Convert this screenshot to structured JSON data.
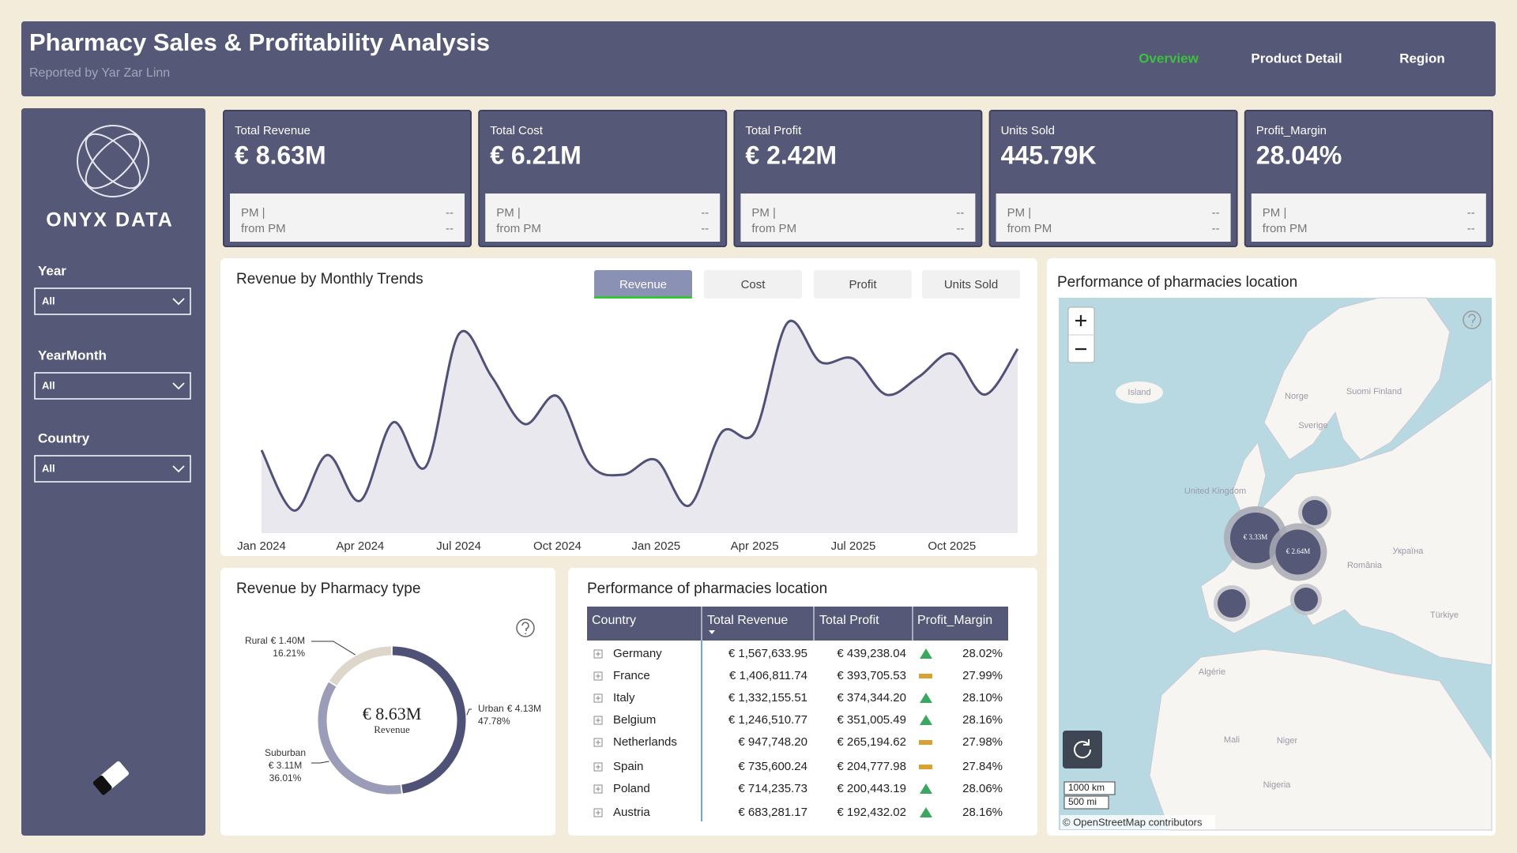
{
  "header": {
    "title": "Pharmacy Sales & Profitability Analysis",
    "subtitle": "Reported by Yar Zar Linn",
    "nav": [
      "Overview",
      "Product Detail",
      "Region"
    ]
  },
  "sidebar": {
    "logo": "ONYX DATA",
    "filters": [
      {
        "label": "Year",
        "value": "All"
      },
      {
        "label": "YearMonth",
        "value": "All"
      },
      {
        "label": "Country",
        "value": "All"
      }
    ]
  },
  "kpis": [
    {
      "label": "Total Revenue",
      "value": "€ 8.63M",
      "pm": "PM |",
      "from": "from PM",
      "d1": "--",
      "d2": "--"
    },
    {
      "label": "Total Cost",
      "value": "€ 6.21M",
      "pm": "PM |",
      "from": "from PM",
      "d1": "--",
      "d2": "--"
    },
    {
      "label": "Total Profit",
      "value": "€ 2.42M",
      "pm": "PM |",
      "from": "from PM",
      "d1": "--",
      "d2": "--"
    },
    {
      "label": "Units Sold",
      "value": "445.79K",
      "pm": "PM |",
      "from": "from PM",
      "d1": "--",
      "d2": "--"
    },
    {
      "label": "Profit_Margin",
      "value": "28.04%",
      "pm": "PM |",
      "from": "from PM",
      "d1": "--",
      "d2": "--"
    }
  ],
  "trend": {
    "type": "line",
    "title": "Revenue by Monthly Trends",
    "buttons": [
      "Revenue",
      "Cost",
      "Profit",
      "Units Sold"
    ],
    "color": "#4f5177",
    "categories": [
      "Jan 2024",
      null,
      null,
      "Apr 2024",
      null,
      null,
      "Jul 2024",
      null,
      null,
      "Oct 2024",
      null,
      null,
      "Jan 2025",
      null,
      null,
      "Apr 2025",
      null,
      null,
      "Jul 2025",
      null,
      null,
      "Oct 2025",
      null,
      null
    ],
    "values": [
      330000,
      293000,
      327000,
      299000,
      347000,
      320000,
      401000,
      375000,
      346000,
      363000,
      321000,
      315000,
      324000,
      296000,
      341000,
      341000,
      408000,
      384000,
      386000,
      364000,
      375000,
      389000,
      364000,
      392000
    ]
  },
  "pharmacy_type": {
    "type": "pie",
    "title": "Revenue by Pharmacy type",
    "center_value": "€ 8.63M",
    "center_label": "Revenue",
    "categories": [
      "Urban",
      "Suburban",
      "Rural"
    ],
    "values": [
      47.78,
      36.01,
      16.21
    ],
    "value_labels": [
      "47.78%",
      "36.01%",
      "16.21%"
    ],
    "amount_labels": [
      "€ 4.13M",
      "€ 3.11M",
      "€ 1.40M"
    ],
    "colors": [
      "#4f5177",
      "#9a9cb8",
      "#ddd6ca"
    ]
  },
  "table": {
    "title": "Performance of pharmacies location",
    "columns": [
      "Country",
      "Total Revenue",
      "Total Profit",
      "Profit_Margin"
    ],
    "rows": [
      [
        "Germany",
        "€ 1,567,633.95",
        "€ 439,238.04",
        "28.02%"
      ],
      [
        "France",
        "€ 1,406,811.74",
        "€ 393,705.53",
        "27.99%"
      ],
      [
        "Italy",
        "€ 1,332,155.51",
        "€ 374,344.20",
        "28.10%"
      ],
      [
        "Belgium",
        "€ 1,246,510.77",
        "€ 351,005.49",
        "28.16%"
      ],
      [
        "Netherlands",
        "€ 947,748.20",
        "€ 265,194.62",
        "27.98%"
      ],
      [
        "Spain",
        "€ 735,600.24",
        "€ 204,777.98",
        "27.84%"
      ],
      [
        "Poland",
        "€ 714,235.73",
        "€ 200,443.19",
        "28.06%"
      ],
      [
        "Austria",
        "€ 683,281.17",
        "€ 192,432.02",
        "28.16%"
      ]
    ]
  },
  "map": {
    "title": "Performance of pharmacies location",
    "bubble_labels": [
      "€ 3.33M",
      "€ 2.64M"
    ],
    "bubble_values": [
      3330000,
      2640000
    ],
    "places": [
      "Island",
      "Norge",
      "Sverige",
      "Suomi Finland",
      "United Kingdom",
      "Україна",
      "România",
      "Türkiye",
      "Algérie",
      "Mali",
      "Niger",
      "Nigeria"
    ],
    "scale_km": "1000 km",
    "scale_mi": "500 mi",
    "attribution": "© OpenStreetMap contributors"
  }
}
